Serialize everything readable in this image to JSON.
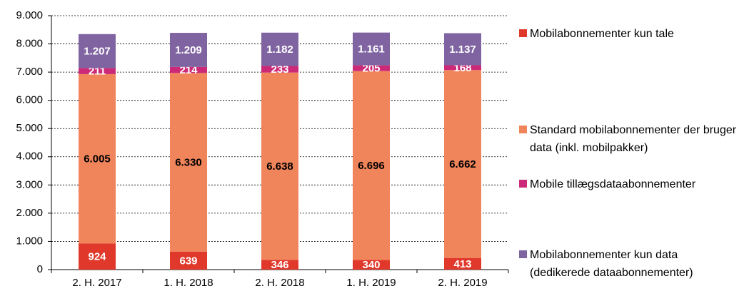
{
  "chart_data": {
    "type": "stacked_bar",
    "categories": [
      "2. H. 2017",
      "1. H. 2018",
      "2. H. 2018",
      "1. H. 2019",
      "2. H. 2019"
    ],
    "series": [
      {
        "name": "Mobilabonnementer kun tale",
        "color": "#e0392c",
        "label_color": "#ffffff",
        "values": [
          924,
          639,
          346,
          340,
          413
        ]
      },
      {
        "name": "Standard mobilabonnementer der bruger data (inkl. mobilpakker)",
        "color": "#f0845a",
        "label_color": "#000000",
        "values": [
          6005,
          6330,
          6638,
          6696,
          6662
        ],
        "value_labels": [
          "6.005",
          "6.330",
          "6.638",
          "6.696",
          "6.662"
        ]
      },
      {
        "name": "Mobile tillægsdataabonnementer",
        "color": "#cc2a78",
        "label_color": "#ffffff",
        "values": [
          211,
          214,
          233,
          205,
          168
        ]
      },
      {
        "name": "Mobilabonnementer kun data (dedikerede dataabonnementer)",
        "color": "#8064a2",
        "label_color": "#ffffff",
        "values": [
          1207,
          1209,
          1182,
          1161,
          1137
        ],
        "value_labels": [
          "1.207",
          "1.209",
          "1.182",
          "1.161",
          "1.137"
        ]
      }
    ],
    "ylim": [
      0,
      9000
    ],
    "yticks": [
      0,
      {
        "value": 1000,
        "label": "1.000"
      },
      {
        "value": 2000,
        "label": "2.000"
      },
      {
        "value": 3000,
        "label": "3.000"
      },
      {
        "value": 4000,
        "label": "4.000"
      },
      {
        "value": 5000,
        "label": "5.000"
      },
      {
        "value": 6000,
        "label": "6.000"
      },
      {
        "value": 7000,
        "label": "7.000"
      },
      {
        "value": 8000,
        "label": "8.000"
      },
      {
        "value": 9000,
        "label": "9.000"
      }
    ],
    "grid": true,
    "legend": "right"
  }
}
